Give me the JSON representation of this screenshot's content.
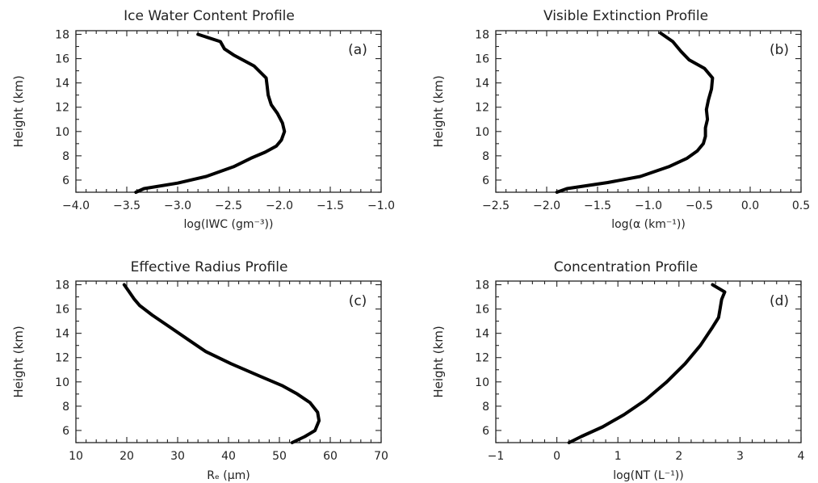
{
  "chart_data": [
    {
      "type": "line",
      "title": "Ice Water Content Profile",
      "panel_label": "(a)",
      "xlabel": "log(IWC (gm⁻³))",
      "ylabel": "Height (km)",
      "xlim": [
        -4.0,
        -1.0
      ],
      "ylim": [
        5,
        18.3
      ],
      "xticks": [
        -4.0,
        -3.5,
        -3.0,
        -2.5,
        -2.0,
        -1.5,
        -1.0
      ],
      "xtick_labels": [
        "−4.0",
        "−3.5",
        "−3.0",
        "−2.5",
        "−2.0",
        "−1.5",
        "−1.0"
      ],
      "yticks": [
        6,
        8,
        10,
        12,
        14,
        16,
        18
      ],
      "ytick_labels": [
        "6",
        "8",
        "10",
        "12",
        "14",
        "16",
        "18"
      ],
      "x": [
        -3.41,
        -3.33,
        -3.0,
        -2.72,
        -2.45,
        -2.28,
        -2.14,
        -2.03,
        -1.98,
        -1.95,
        -1.97,
        -2.02,
        -2.08,
        -2.11,
        -2.12,
        -2.13,
        -2.25,
        -2.45,
        -2.54,
        -2.58,
        -2.8
      ],
      "y": [
        5.0,
        5.3,
        5.75,
        6.3,
        7.1,
        7.8,
        8.3,
        8.8,
        9.3,
        10.0,
        10.7,
        11.5,
        12.2,
        13.0,
        13.7,
        14.4,
        15.4,
        16.3,
        16.8,
        17.4,
        18.0
      ]
    },
    {
      "type": "line",
      "title": "Visible Extinction Profile",
      "panel_label": "(b)",
      "xlabel": "log(α (km⁻¹))",
      "ylabel": "Height (km)",
      "xlim": [
        -2.5,
        0.5
      ],
      "ylim": [
        5,
        18.3
      ],
      "xticks": [
        -2.5,
        -2.0,
        -1.5,
        -1.0,
        -0.5,
        0.0,
        0.5
      ],
      "xtick_labels": [
        "−2.5",
        "−2.0",
        "−1.5",
        "−1.0",
        "−0.5",
        "0.0",
        "0.5"
      ],
      "yticks": [
        6,
        8,
        10,
        12,
        14,
        16,
        18
      ],
      "ytick_labels": [
        "6",
        "8",
        "10",
        "12",
        "14",
        "16",
        "18"
      ],
      "x": [
        -1.9,
        -1.8,
        -1.4,
        -1.08,
        -0.8,
        -0.62,
        -0.52,
        -0.46,
        -0.44,
        -0.44,
        -0.42,
        -0.43,
        -0.41,
        -0.38,
        -0.37,
        -0.45,
        -0.6,
        -0.68,
        -0.76,
        -0.88
      ],
      "y": [
        5.0,
        5.3,
        5.8,
        6.3,
        7.1,
        7.8,
        8.4,
        9.0,
        9.6,
        10.3,
        11.0,
        11.8,
        12.6,
        13.5,
        14.4,
        15.2,
        15.9,
        16.6,
        17.4,
        18.1
      ]
    },
    {
      "type": "line",
      "title": "Effective Radius Profile",
      "panel_label": "(c)",
      "xlabel": "Rₑ (μm)",
      "ylabel": "Height (km)",
      "xlim": [
        10,
        70
      ],
      "ylim": [
        5,
        18.3
      ],
      "xticks": [
        10,
        20,
        30,
        40,
        50,
        60,
        70
      ],
      "xtick_labels": [
        "10",
        "20",
        "30",
        "40",
        "50",
        "60",
        "70"
      ],
      "yticks": [
        6,
        8,
        10,
        12,
        14,
        16,
        18
      ],
      "ytick_labels": [
        "6",
        "8",
        "10",
        "12",
        "14",
        "16",
        "18"
      ],
      "x": [
        52.5,
        55.0,
        57.0,
        57.8,
        57.5,
        56.0,
        53.5,
        50.5,
        46.0,
        40.5,
        35.5,
        32.0,
        28.5,
        25.0,
        22.5,
        21.5,
        20.5,
        19.5
      ],
      "y": [
        5.0,
        5.5,
        6.0,
        6.8,
        7.5,
        8.3,
        9.0,
        9.7,
        10.5,
        11.5,
        12.5,
        13.5,
        14.5,
        15.5,
        16.3,
        16.8,
        17.4,
        18.0
      ]
    },
    {
      "type": "line",
      "title": "Concentration Profile",
      "panel_label": "(d)",
      "xlabel": "log(NT (L⁻¹))",
      "ylabel": "Height (km)",
      "xlim": [
        -1,
        4
      ],
      "ylim": [
        5,
        18.3
      ],
      "xticks": [
        -1,
        0,
        1,
        2,
        3,
        4
      ],
      "xtick_labels": [
        "−1",
        "0",
        "1",
        "2",
        "3",
        "4"
      ],
      "yticks": [
        6,
        8,
        10,
        12,
        14,
        16,
        18
      ],
      "ytick_labels": [
        "6",
        "8",
        "10",
        "12",
        "14",
        "16",
        "18"
      ],
      "x": [
        0.2,
        0.4,
        0.75,
        1.1,
        1.45,
        1.8,
        2.1,
        2.35,
        2.55,
        2.65,
        2.68,
        2.7,
        2.75,
        2.55
      ],
      "y": [
        5.0,
        5.5,
        6.3,
        7.3,
        8.5,
        10.0,
        11.5,
        13.0,
        14.5,
        15.3,
        16.2,
        16.8,
        17.4,
        18.0
      ]
    }
  ]
}
